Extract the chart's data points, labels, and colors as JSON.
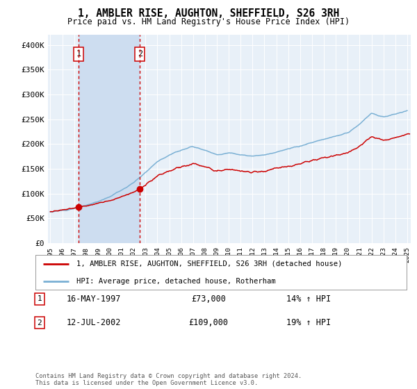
{
  "title": "1, AMBLER RISE, AUGHTON, SHEFFIELD, S26 3RH",
  "subtitle": "Price paid vs. HM Land Registry's House Price Index (HPI)",
  "legend_line1": "1, AMBLER RISE, AUGHTON, SHEFFIELD, S26 3RH (detached house)",
  "legend_line2": "HPI: Average price, detached house, Rotherham",
  "sale1_date": 1997.37,
  "sale1_price": 73000,
  "sale1_label": "16-MAY-1997",
  "sale1_pct": "14% ↑ HPI",
  "sale2_date": 2002.53,
  "sale2_price": 109000,
  "sale2_label": "12-JUL-2002",
  "sale2_pct": "19% ↑ HPI",
  "footer": "Contains HM Land Registry data © Crown copyright and database right 2024.\nThis data is licensed under the Open Government Licence v3.0.",
  "xlim_lo": 1994.8,
  "xlim_hi": 2025.3,
  "ylim_lo": 0,
  "ylim_hi": 420000,
  "yticks": [
    0,
    50000,
    100000,
    150000,
    200000,
    250000,
    300000,
    350000,
    400000
  ],
  "ytick_labels": [
    "£0",
    "£50K",
    "£100K",
    "£150K",
    "£200K",
    "£250K",
    "£300K",
    "£350K",
    "£400K"
  ],
  "red_color": "#cc0000",
  "blue_color": "#7ab0d4",
  "bg_color": "#e8f0f8",
  "span_color": "#cdddf0",
  "grid_color": "#ffffff",
  "fig_w": 6.0,
  "fig_h": 5.6,
  "dpi": 100,
  "hpi_knots_x": [
    1995,
    1996,
    1997,
    1998,
    1999,
    2000,
    2001,
    2002,
    2003,
    2004,
    2005,
    2006,
    2007,
    2008,
    2009,
    2010,
    2011,
    2012,
    2013,
    2014,
    2015,
    2016,
    2017,
    2018,
    2019,
    2020,
    2021,
    2022,
    2023,
    2024,
    2025
  ],
  "hpi_knots_y": [
    63000,
    66000,
    70000,
    76000,
    84000,
    94000,
    107000,
    122000,
    143000,
    165000,
    178000,
    188000,
    195000,
    188000,
    178000,
    182000,
    178000,
    175000,
    178000,
    184000,
    190000,
    196000,
    203000,
    210000,
    216000,
    222000,
    240000,
    262000,
    255000,
    260000,
    268000
  ]
}
